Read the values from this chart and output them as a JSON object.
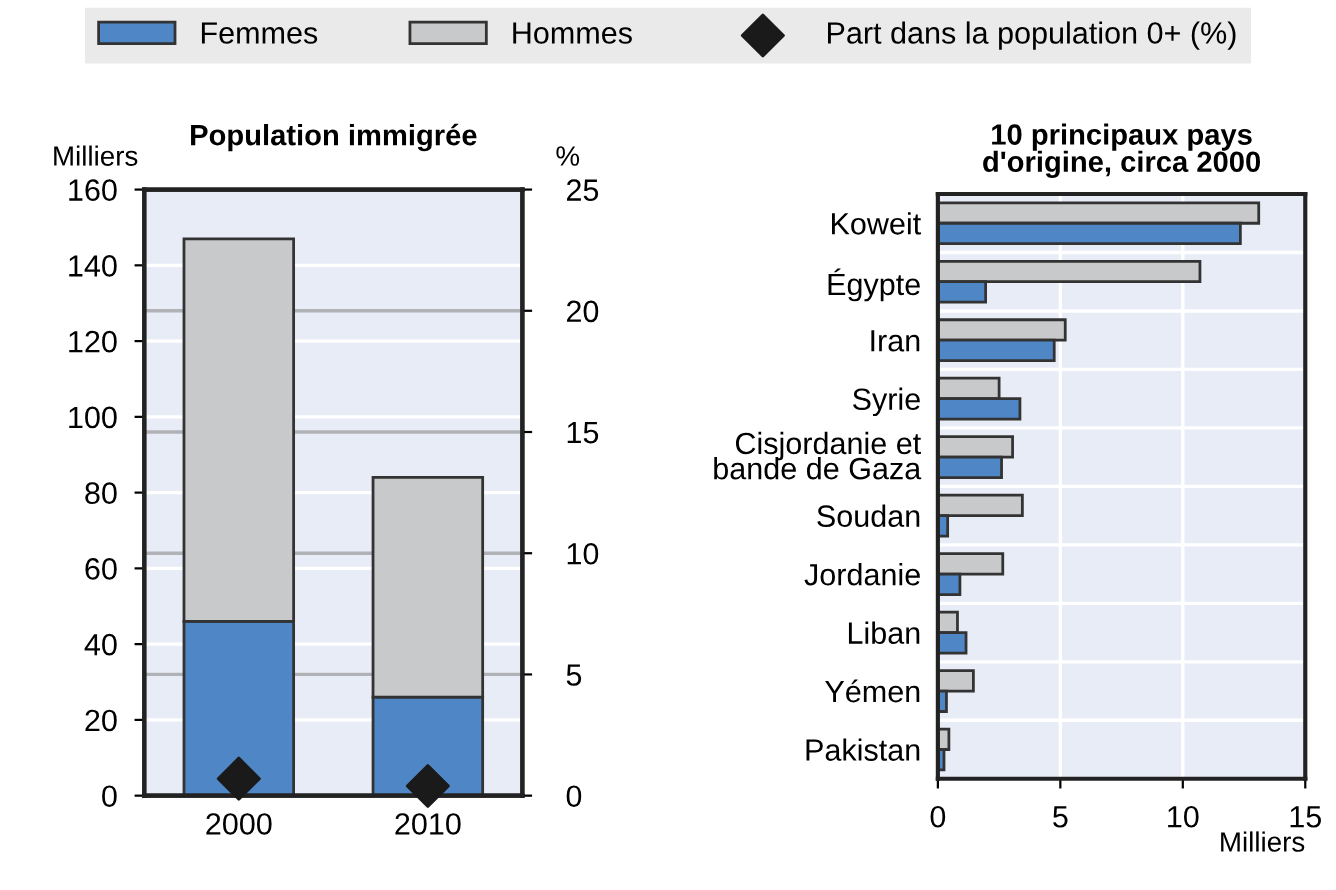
{
  "chart_data": [
    {
      "type": "bar",
      "title": "Population immigrée",
      "ylabel": "Milliers",
      "y2label": "%",
      "categories": [
        "2000",
        "2010"
      ],
      "stacked": true,
      "legend": "top",
      "series": [
        {
          "name": "Femmes",
          "color": "#4f87c6",
          "values": [
            46,
            26
          ]
        },
        {
          "name": "Hommes",
          "color": "#c8c9cb",
          "values": [
            101,
            58
          ]
        },
        {
          "name": "Part dans la population 0+ (%)",
          "type": "scatter",
          "axis": "y2",
          "marker": "diamond",
          "color": "#1a1a1a",
          "values": [
            0.7,
            0.4
          ]
        }
      ],
      "ylim": [
        0,
        160
      ],
      "yticks": [
        0,
        20,
        40,
        60,
        80,
        100,
        120,
        140,
        160
      ],
      "y2lim": [
        0,
        25
      ],
      "y2ticks": [
        0,
        5,
        10,
        15,
        20,
        25
      ],
      "grid": "y"
    },
    {
      "type": "bar",
      "title": "10 principaux pays\nd'origine, circa 2000",
      "xlabel": "Milliers",
      "orientation": "horizontal",
      "categories": [
        "Koweit",
        "Égypte",
        "Iran",
        "Syrie",
        "Cisjordanie et\nbande de Gaza",
        "Soudan",
        "Jordanie",
        "Liban",
        "Yémen",
        "Pakistan"
      ],
      "series": [
        {
          "color": "#c8c9cb",
          "values": [
            13.1,
            10.7,
            5.2,
            2.5,
            3.05,
            3.45,
            2.65,
            0.8,
            1.45,
            0.45
          ]
        },
        {
          "color": "#4f87c6",
          "values": [
            12.35,
            1.95,
            4.75,
            3.35,
            2.6,
            0.4,
            0.9,
            1.15,
            0.35,
            0.25
          ]
        }
      ],
      "xlim": [
        0,
        15
      ],
      "xticks": [
        0,
        5,
        10,
        15
      ],
      "grid": "x"
    }
  ]
}
